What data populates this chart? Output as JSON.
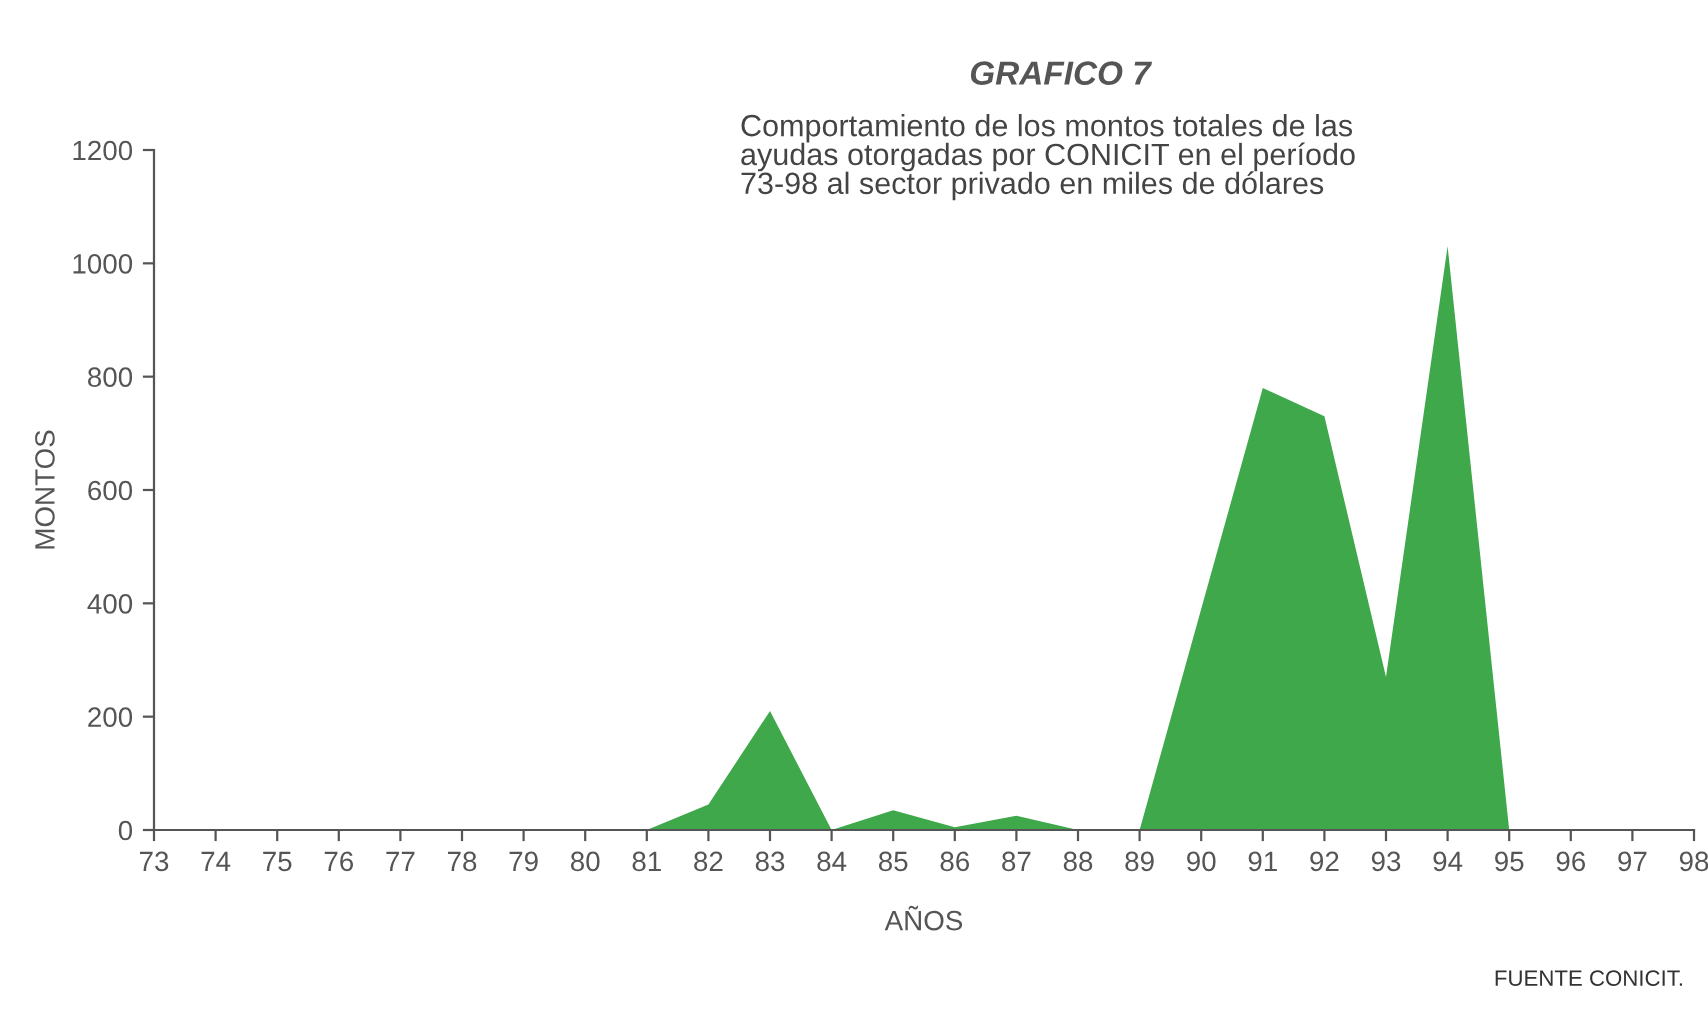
{
  "chart_data": {
    "type": "area",
    "title": "GRAFICO 7",
    "subtitle": "Comportamiento de los montos totales de las\nayudas otorgadas por CONICIT en el período\n73-98 al sector privado en miles de dólares",
    "xlabel": "AÑOS",
    "ylabel": "MONTOS",
    "categories": [
      "73",
      "74",
      "75",
      "76",
      "77",
      "78",
      "79",
      "80",
      "81",
      "82",
      "83",
      "84",
      "85",
      "86",
      "87",
      "88",
      "89",
      "90",
      "91",
      "92",
      "93",
      "94",
      "95",
      "96",
      "97",
      "98"
    ],
    "series": [
      {
        "color": "#3fa84a",
        "values": [
          0,
          0,
          0,
          0,
          0,
          0,
          0,
          0,
          0,
          45,
          210,
          0,
          35,
          5,
          25,
          0,
          0,
          390,
          780,
          730,
          270,
          1030,
          0,
          0,
          0,
          0
        ]
      }
    ],
    "ylim": [
      0,
      1200
    ],
    "yticks": [
      0,
      200,
      400,
      600,
      800,
      1000,
      1200
    ],
    "grid": false,
    "annotations": [
      "FUENTE CONICIT."
    ]
  }
}
